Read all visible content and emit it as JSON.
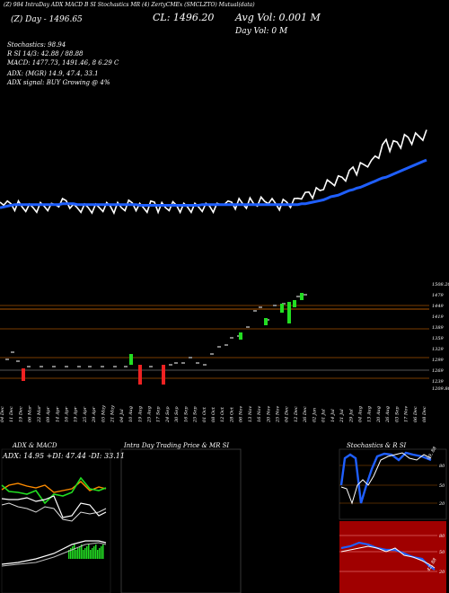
{
  "header": {
    "line1": "(Z) 984 IntraDay ADX MACD B  SI Stochastics MR  (4) ZertyCMEx  (SMCLZTO) Mutual(data)",
    "line2_left": "(Z) Day - 1496.65",
    "close_label": "CL: 1496.20",
    "avg_vol": "Avg Vol: 0.001 M",
    "day_vol": "Day Vol: 0   M",
    "stochastics": "Stochastics: 98.94",
    "si_row": "R                    SI 14/3: 42.88 / 88.88",
    "macd": "MACD: 1477.73,  1491.46,  8               6.29 C",
    "adx": "ADX:                          (MGR) 14.9,  47.4,  33.1",
    "adx_signal": "ADX  signal:                          BUY Growing @ 4%"
  },
  "colors": {
    "price_line": "#ffffff",
    "ma_line": "#1f5fff",
    "up": "#22dd22",
    "down": "#ee2222",
    "orange": "#ff8c00",
    "stoch_bg_red": "#a00000",
    "stoch_bg_black": "#000000"
  },
  "chart_data": [
    {
      "type": "line",
      "name": "price-line-panel",
      "values_price": [
        8,
        11,
        5,
        6,
        4,
        5,
        2,
        3,
        1,
        1,
        2,
        3,
        3,
        4,
        2,
        5,
        9,
        8,
        10,
        7,
        1,
        1,
        2,
        1,
        1,
        1,
        1,
        1,
        3,
        3,
        3,
        1,
        3,
        1,
        4,
        6,
        7,
        4,
        2,
        1,
        2,
        5,
        8,
        2,
        3,
        1,
        4,
        4,
        4,
        2,
        2,
        2,
        2,
        2,
        2,
        3,
        2,
        3,
        2,
        2,
        5,
        12,
        5,
        8,
        6,
        8,
        6,
        7,
        9,
        6,
        10,
        10,
        9,
        13,
        8,
        6,
        5,
        7,
        8,
        8,
        8,
        13,
        19,
        16,
        21,
        20,
        22,
        23,
        31,
        32,
        33,
        36,
        37,
        40,
        42,
        44,
        53,
        50,
        54,
        56,
        60,
        57,
        67,
        71,
        77,
        88,
        80,
        82,
        85,
        84,
        90,
        91,
        89,
        92,
        92,
        94,
        96
      ],
      "values_ma": [
        1,
        2,
        3,
        4,
        5,
        5,
        5,
        5,
        5,
        5,
        5,
        5,
        5,
        5,
        5,
        5,
        5,
        6,
        6,
        6,
        6,
        5,
        5,
        5,
        5,
        5,
        5,
        5,
        5,
        5,
        5,
        5,
        5,
        5,
        5,
        5,
        5,
        5,
        4,
        4,
        4,
        4,
        4,
        4,
        4,
        4,
        4,
        4,
        4,
        4,
        4,
        4,
        4,
        4,
        4,
        5,
        5,
        5,
        5,
        5,
        5,
        5,
        5,
        5,
        5,
        5,
        5,
        5,
        5,
        5,
        5,
        5,
        5,
        5,
        5,
        5,
        5,
        5,
        5,
        5,
        5,
        5,
        6,
        6,
        7,
        8,
        9,
        10,
        11,
        13,
        15,
        16,
        17,
        19,
        21,
        23,
        24,
        26,
        27,
        29,
        31,
        33,
        35,
        37,
        39,
        40,
        42,
        44,
        46,
        48,
        50,
        52,
        54,
        56,
        58,
        60,
        62
      ]
    },
    {
      "type": "bar",
      "name": "candles",
      "y_ticks": [
        "1508.20",
        "1479",
        "1449",
        "1419",
        "1389",
        "1359",
        "1329",
        "1299",
        "1269",
        "1239",
        "1209.86"
      ],
      "x_labels": [
        "04 Dec",
        "11 Dec",
        "19 Dec",
        "06 Mar",
        "22 Mar",
        "09 Apr",
        "14 Apr",
        "16 Apr",
        "19 Apr",
        "25 Apr",
        "29 Apr",
        "05 May",
        "21 May",
        "04 Jul",
        "10 Aug",
        "19 Aug",
        "25 Aug",
        "17 Sep",
        "24 Sep",
        "30 Sep",
        "16 Sep",
        "25 Sep",
        "01 Oct",
        "08 Oct",
        "12 Oct",
        "28 Oct",
        "06 Nov",
        "13 Nov",
        "16 Nov",
        "20 Nov",
        "25 Nov",
        "04 Dec",
        "12 Dec",
        "26 Dec",
        "02 Jan",
        "01 Jul",
        "14 Jul",
        "21 Jul",
        "29 Jul",
        "04 Aug",
        "13 Aug",
        "20 Aug",
        "26 Aug",
        "03 Sep",
        "17 Nov",
        "06 Dec",
        "08 Dec"
      ]
    },
    {
      "type": "line",
      "name": "adx-macd",
      "title": "ADX  & MACD",
      "legend": "ADX: 14.95  +DI: 47.44  -DI: 33.11"
    },
    {
      "type": "bar",
      "name": "intraday",
      "title": "Intra  Day Trading Price  & MR             SI"
    },
    {
      "type": "line",
      "name": "stoch-si",
      "title": "Stochastics & R             SI",
      "ticks_top": [
        "80",
        "50",
        "20"
      ],
      "ticks_bottom": [
        "80",
        "50",
        "20"
      ],
      "label_top": "99, 88",
      "label_bottom": "42, 88"
    }
  ]
}
